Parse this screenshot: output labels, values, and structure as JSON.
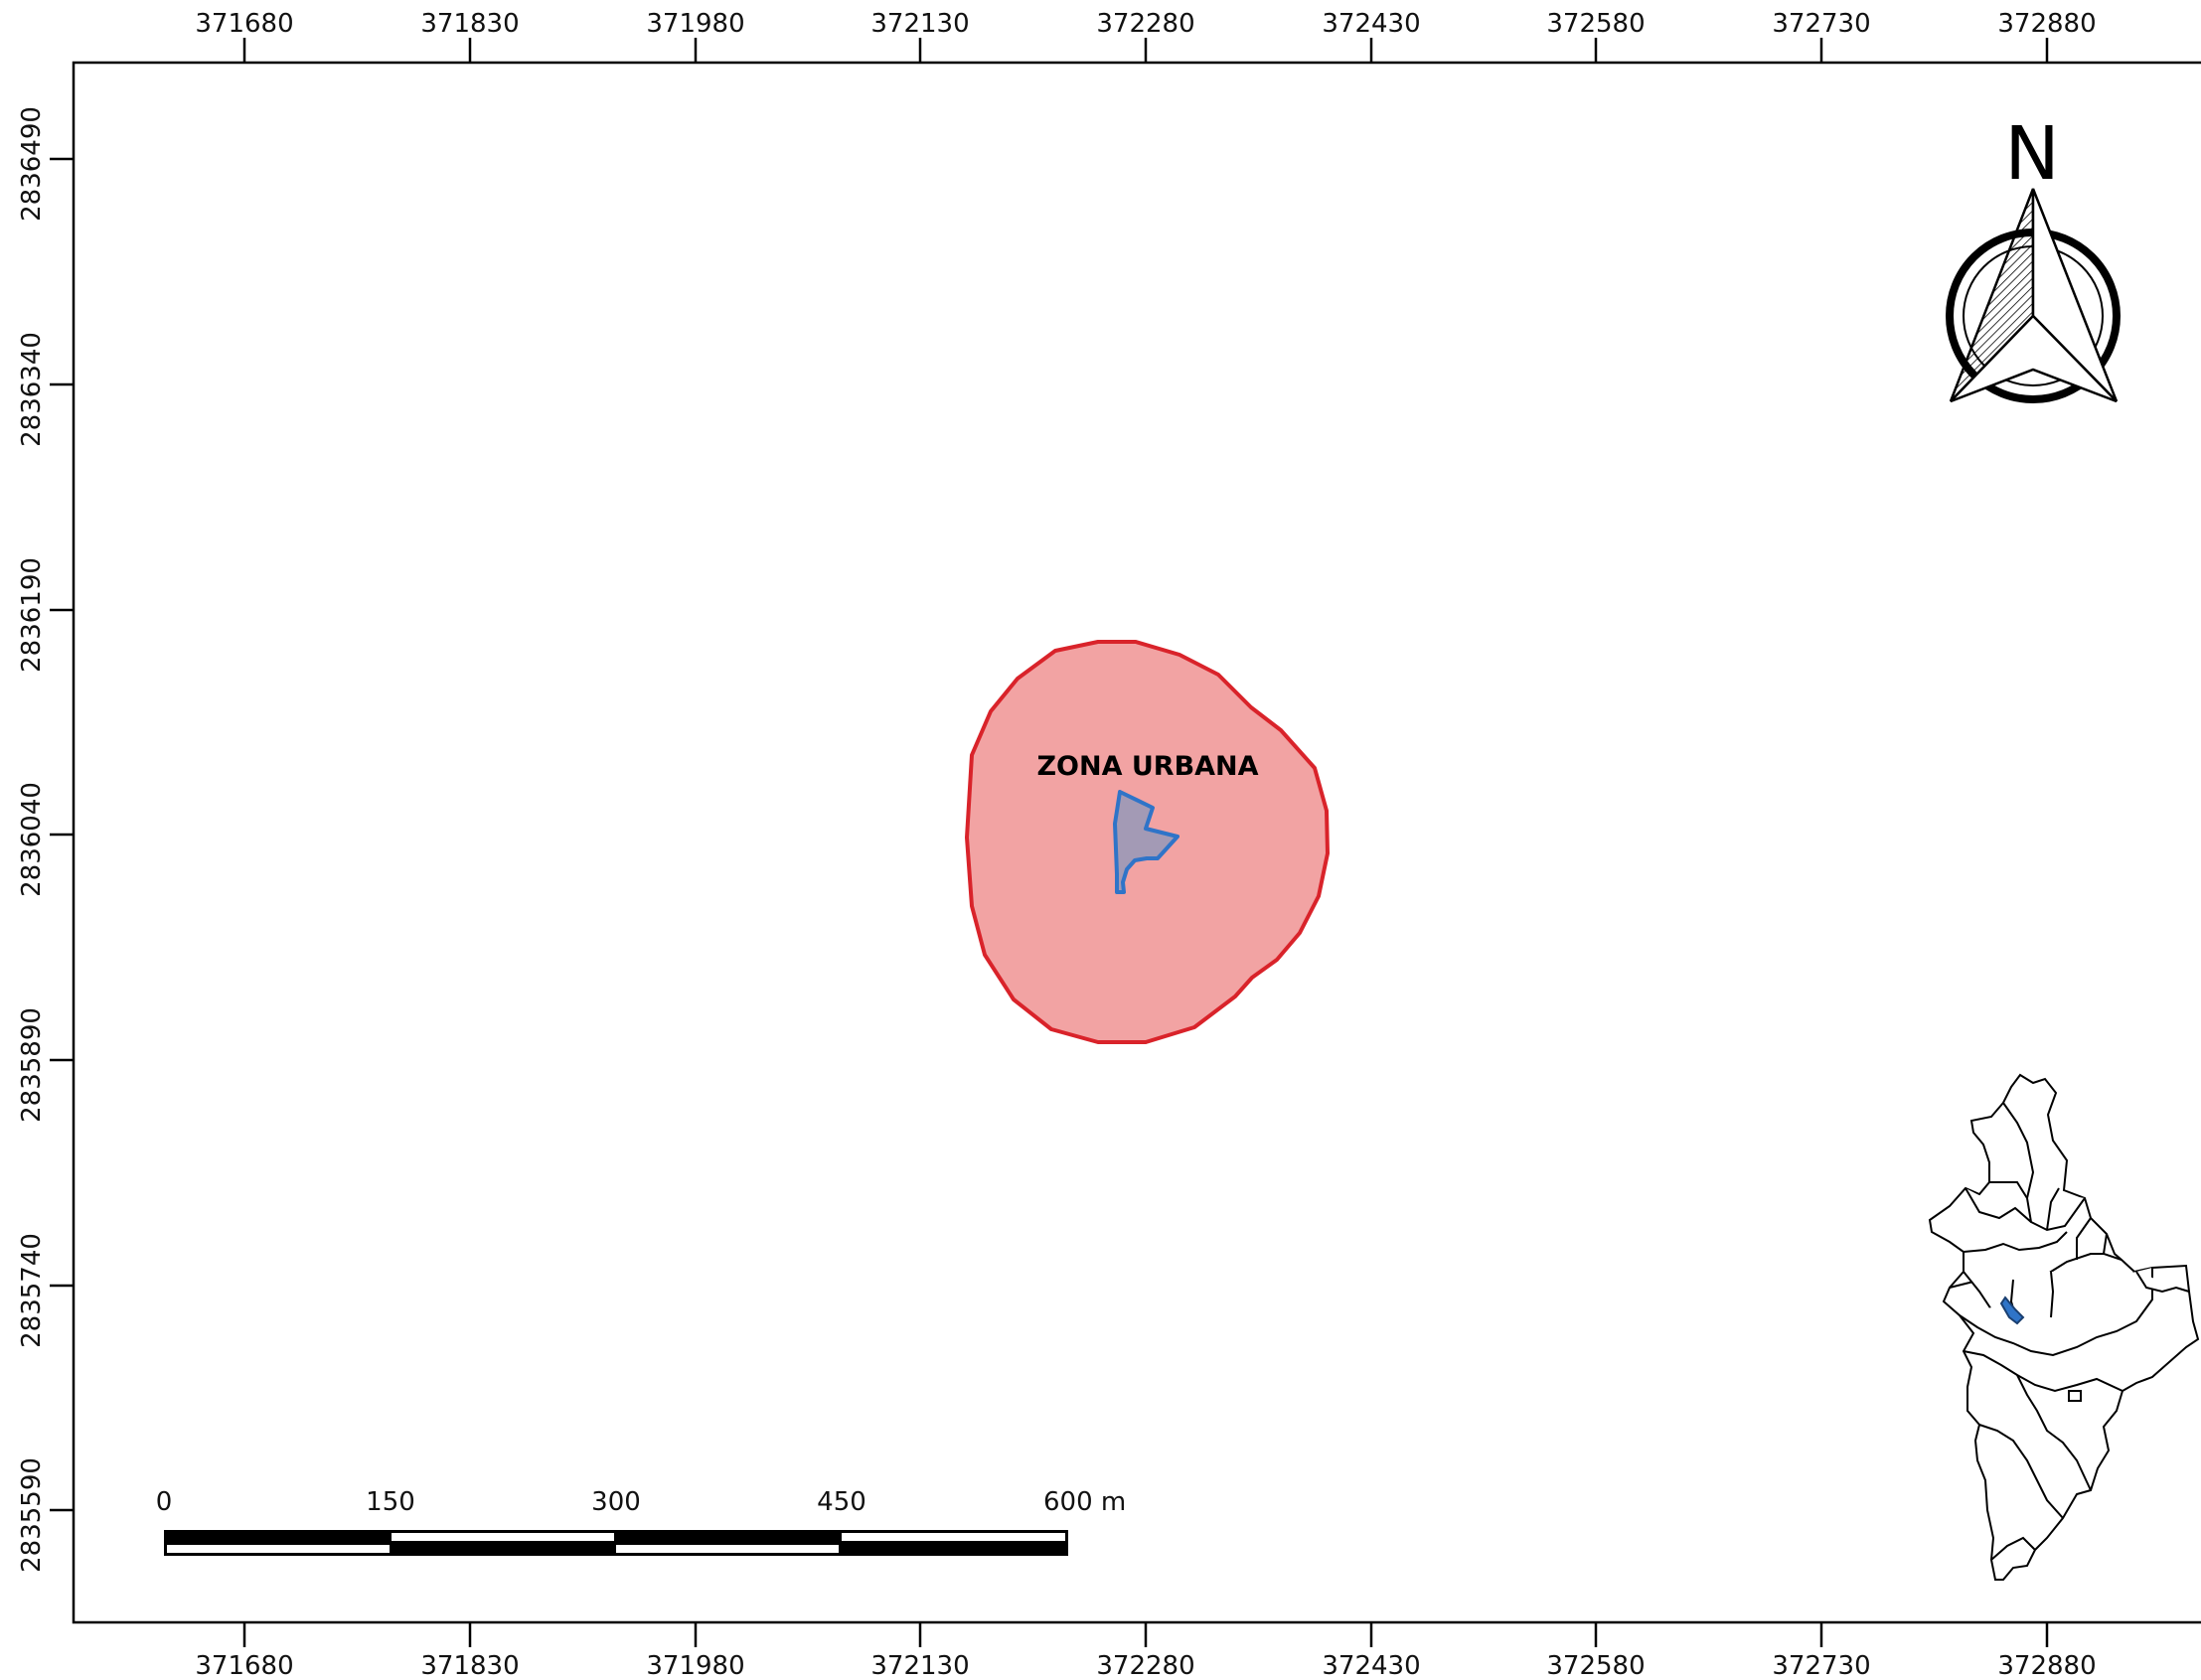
{
  "map": {
    "x_ticks": [
      "371680",
      "371830",
      "371980",
      "372130",
      "372280",
      "372430",
      "372580",
      "372730",
      "372880"
    ],
    "y_ticks": [
      "2836490",
      "2836340",
      "2836190",
      "2836040",
      "2835890",
      "2835740",
      "2835590"
    ],
    "zone_label": "ZONA URBANA",
    "north_label": "N",
    "scale_labels": [
      "0",
      "150",
      "300",
      "450",
      "600 m"
    ],
    "colors": {
      "zone_fill": "#f2a3a3",
      "zone_stroke": "#d9232a",
      "parcel_fill": "#a39ab5",
      "parcel_stroke": "#2f74c8",
      "inset_highlight": "#2f74c8"
    },
    "layers": [
      "zona-urbana-buffer",
      "study-parcel",
      "regional-inset-map"
    ],
    "icons": [
      "north-arrow-icon",
      "scale-bar"
    ]
  }
}
